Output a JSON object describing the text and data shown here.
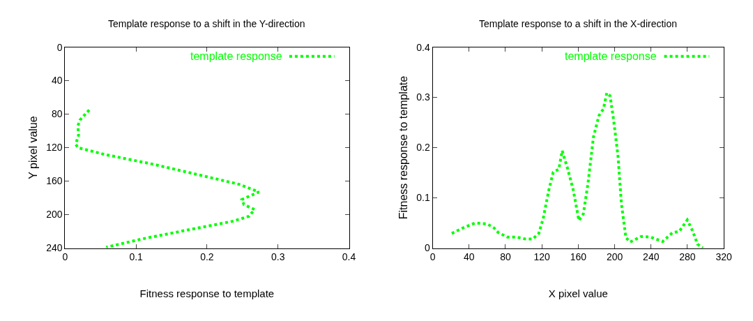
{
  "chart_data": [
    {
      "type": "line",
      "title": "Template response to a shift in the Y-direction",
      "xlabel": "Fitness response to template",
      "ylabel": "Y pixel value",
      "xlim": [
        0,
        0.4
      ],
      "xticks": [
        0,
        0.1,
        0.2,
        0.3,
        0.4
      ],
      "ylim": [
        240,
        0
      ],
      "yticks": [
        0,
        40,
        80,
        120,
        160,
        200,
        240
      ],
      "legend": "top right",
      "line_style": "dotted",
      "marker": "none",
      "series": [
        {
          "name": "template response",
          "color": "#00ff00",
          "x": [
            0.034,
            0.021,
            0.018,
            0.019,
            0.015,
            0.018,
            0.055,
            0.125,
            0.201,
            0.246,
            0.273,
            0.249,
            0.252,
            0.267,
            0.259,
            0.236,
            0.169,
            0.109,
            0.058
          ],
          "values": [
            75,
            87,
            94,
            105,
            116,
            120,
            128,
            140,
            155,
            164,
            173,
            182,
            188,
            194,
            202,
            208,
            219,
            229,
            239
          ]
        }
      ]
    },
    {
      "type": "line",
      "title": "Template response to a shift in the X-direction",
      "xlabel": "X pixel value",
      "ylabel": "Fitness response to template",
      "xlim": [
        0,
        320
      ],
      "xticks": [
        0,
        40,
        80,
        120,
        160,
        200,
        240,
        280,
        320
      ],
      "ylim": [
        0,
        0.4
      ],
      "yticks": [
        0,
        0.1,
        0.2,
        0.3,
        0.4
      ],
      "legend": "top right",
      "line_style": "dotted",
      "marker": "none",
      "series": [
        {
          "name": "template response",
          "color": "#00ff00",
          "x": [
            21,
            33,
            46.6,
            60,
            67.5,
            72,
            82,
            92,
            102,
            110,
            116.6,
            121.5,
            127.6,
            132.5,
            138.7,
            142.3,
            148.5,
            154.6,
            160.7,
            165.6,
            170.6,
            176.7,
            182.8,
            187.7,
            191.4,
            195,
            198.8,
            203.7,
            207.4,
            212.3,
            217,
            229,
            239.3,
            252.8,
            263.8,
            271,
            279.8,
            286,
            291,
            297
          ],
          "values": [
            0.029,
            0.04,
            0.05,
            0.048,
            0.04,
            0.031,
            0.022,
            0.022,
            0.018,
            0.018,
            0.029,
            0.059,
            0.115,
            0.151,
            0.157,
            0.194,
            0.157,
            0.115,
            0.055,
            0.068,
            0.127,
            0.221,
            0.264,
            0.277,
            0.309,
            0.303,
            0.256,
            0.183,
            0.089,
            0.021,
            0.012,
            0.023,
            0.022,
            0.013,
            0.031,
            0.033,
            0.056,
            0.033,
            0.008,
            0
          ]
        }
      ]
    }
  ]
}
